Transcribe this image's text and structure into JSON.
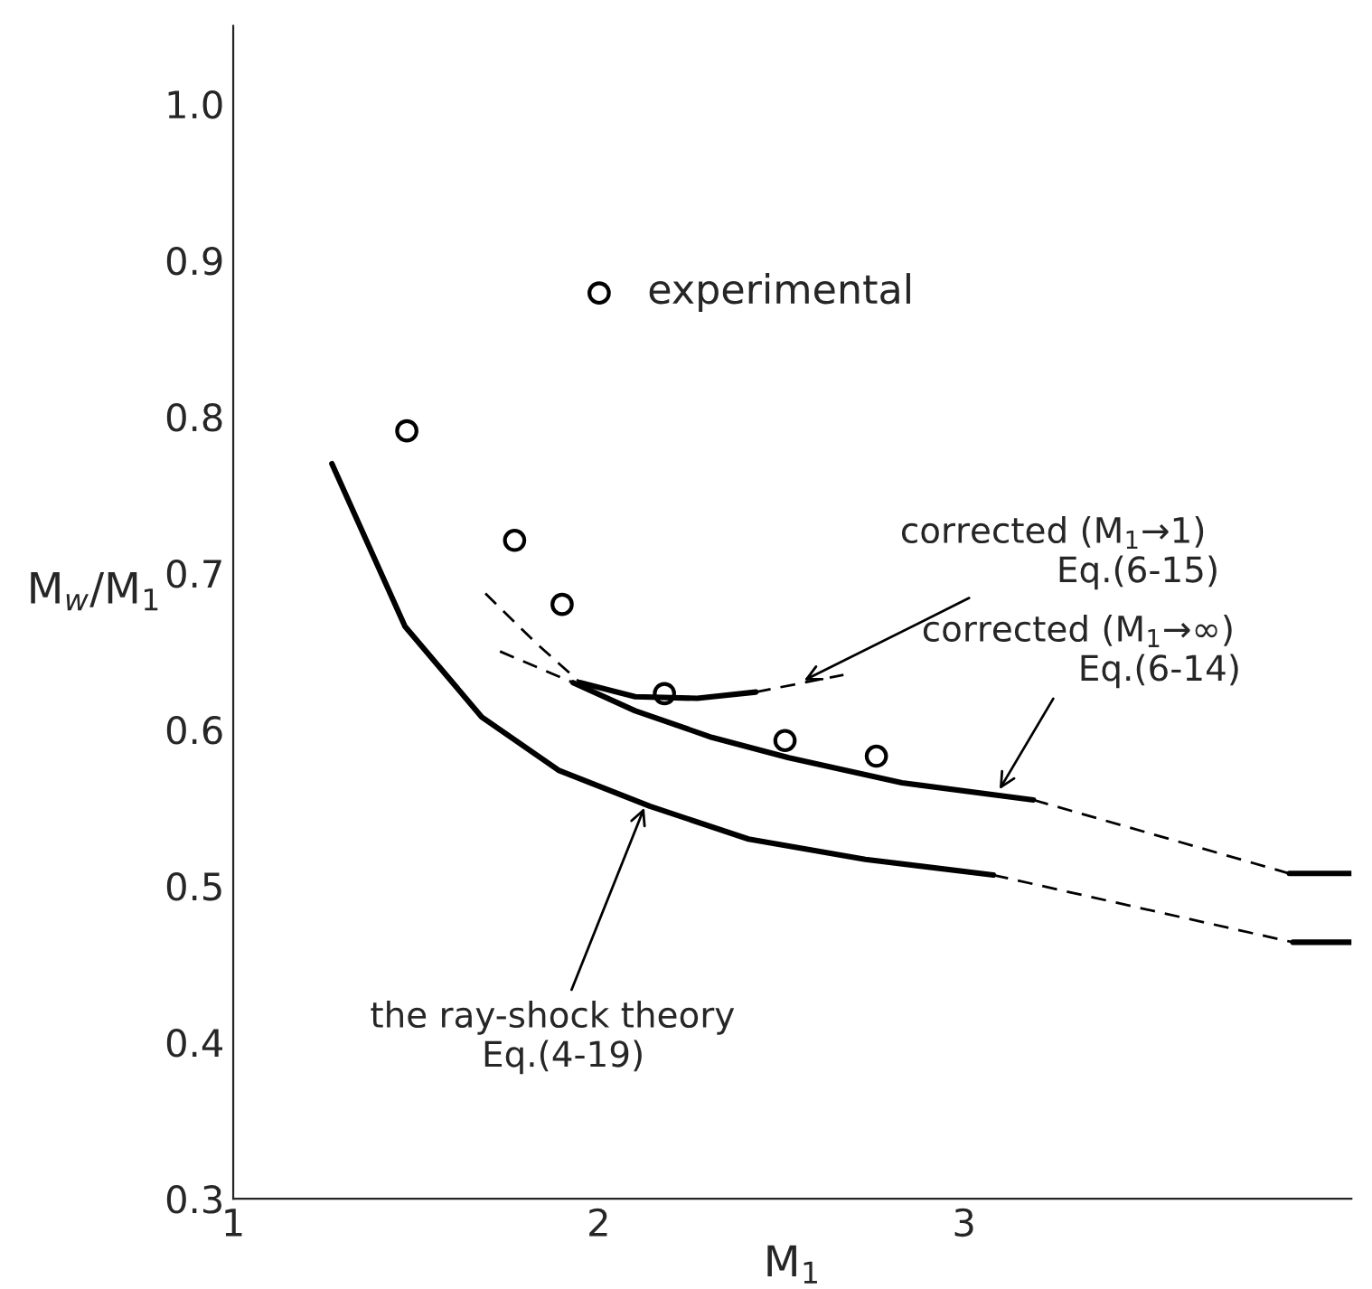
{
  "chart_data": {
    "type": "line",
    "xlabel": "M$_{1}$",
    "ylabel": "M$_{w}$/M$_{1}$",
    "xlim": [
      1,
      4.06
    ],
    "ylim": [
      0.3,
      1.05
    ],
    "xticks": [
      1,
      2,
      3
    ],
    "yticks": [
      {
        "value": 0.3,
        "label": "0.3"
      },
      {
        "value": 0.4,
        "label": "0.4"
      },
      {
        "value": 0.5,
        "label": "0.5"
      },
      {
        "value": 0.6,
        "label": "0.6"
      },
      {
        "value": 0.7,
        "label": "0.7"
      },
      {
        "value": 0.8,
        "label": "0.8"
      },
      {
        "value": 0.9,
        "label": "0.9"
      },
      {
        "value": 1.0,
        "label": "1.0"
      }
    ],
    "grid": false,
    "legend": "top",
    "series": [
      {
        "name": "experimental",
        "type": "scatter",
        "marker": "circle",
        "color": "#000000",
        "x": [
          1.475,
          1.77,
          1.9,
          2.18,
          2.51,
          2.76
        ],
        "values": [
          0.791,
          0.721,
          0.68,
          0.623,
          0.593,
          0.583
        ]
      },
      {
        "color": "#000000",
        "line_style": "solid",
        "x": [
          1.27,
          1.47,
          1.68,
          1.89,
          2.14,
          2.41,
          2.73,
          3.08
        ],
        "values": [
          0.77,
          0.666,
          0.608,
          0.574,
          0.551,
          0.53,
          0.517,
          0.507
        ]
      },
      {
        "color": "#000000",
        "line_style": "dashed",
        "x": [
          3.08,
          3.9
        ],
        "values": [
          0.507,
          0.464
        ]
      },
      {
        "color": "#000000",
        "line_style": "solid",
        "x": [
          3.9,
          4.06
        ],
        "values": [
          0.464,
          0.464
        ]
      },
      {
        "color": "#000000",
        "line_style": "dashed",
        "x": [
          1.73,
          1.93
        ],
        "values": [
          0.65,
          0.63
        ]
      },
      {
        "color": "#000000",
        "line_style": "solid",
        "x": [
          1.93,
          2.1,
          2.31,
          2.52,
          2.83,
          3.19
        ],
        "values": [
          0.63,
          0.612,
          0.595,
          0.582,
          0.566,
          0.555
        ]
      },
      {
        "color": "#000000",
        "line_style": "dashed",
        "x": [
          3.19,
          3.89
        ],
        "values": [
          0.555,
          0.508
        ]
      },
      {
        "color": "#000000",
        "line_style": "solid",
        "x": [
          3.89,
          4.06
        ],
        "values": [
          0.508,
          0.508
        ]
      },
      {
        "color": "#000000",
        "line_style": "dashed",
        "x": [
          1.69,
          1.83,
          1.95
        ],
        "values": [
          0.687,
          0.655,
          0.63
        ]
      },
      {
        "color": "#000000",
        "line_style": "solid",
        "x": [
          1.95,
          2.1,
          2.27,
          2.43
        ],
        "values": [
          0.63,
          0.621,
          0.62,
          0.624
        ]
      },
      {
        "color": "#000000",
        "line_style": "dashed",
        "x": [
          2.43,
          2.67
        ],
        "values": [
          0.624,
          0.635
        ]
      }
    ],
    "annotations": [
      {
        "text": "corrected (M$_{1}$→1)\n              Eq.(6-15)",
        "x": 2.55,
        "y": 0.63
      },
      {
        "text": "corrected (M$_{1}$→∞)\n              Eq.(6-14)",
        "x": 3.09,
        "y": 0.559
      },
      {
        "text": "the ray-shock theory\n          Eq.(4-19)",
        "x": 2.13,
        "y": 0.553
      }
    ]
  }
}
